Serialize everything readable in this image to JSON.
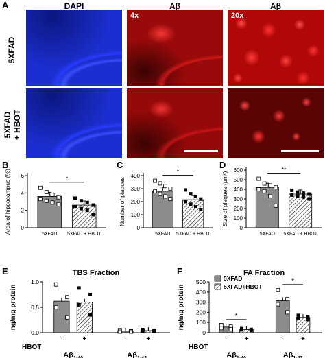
{
  "figure": {
    "panel_letters": [
      "A",
      "B",
      "C",
      "D",
      "E",
      "F"
    ],
    "col_headers": [
      "DAPI",
      "Aβ",
      "Aβ"
    ],
    "row_labels": [
      "5XFAD",
      "5XFAD\n+ HBOT"
    ],
    "magnifications": [
      "4x",
      "20x"
    ],
    "colors": {
      "dapi": "#1b2fe0",
      "abeta": "#e01010",
      "bar_ctrl": "#8c8c8c",
      "bar_hbot": "#ffffff"
    }
  },
  "chart_data": [
    {
      "id": "B",
      "type": "bar",
      "ylabel": "Area of hippocampus (%)",
      "categories": [
        "5XFAD",
        "5XFAD + HBOT"
      ],
      "yticks": [
        0,
        2,
        4,
        6
      ],
      "ylim": [
        0,
        6
      ],
      "values": [
        3.6,
        2.6
      ],
      "sig": "*",
      "points": [
        [
          4.6,
          4.1,
          3.8,
          3.5,
          3.3,
          3.1,
          2.9,
          2.7
        ],
        [
          3.4,
          3.1,
          2.9,
          2.6,
          2.4,
          2.2,
          2.0,
          1.5
        ]
      ]
    },
    {
      "id": "C",
      "type": "bar",
      "ylabel": "Number of plaques",
      "categories": [
        "5XFAD",
        "5XFAD + HBOT"
      ],
      "yticks": [
        0,
        100,
        200,
        300,
        400
      ],
      "ylim": [
        0,
        400
      ],
      "values": [
        280,
        215
      ],
      "sig": "*",
      "points": [
        [
          360,
          340,
          320,
          300,
          280,
          260,
          240,
          220
        ],
        [
          290,
          260,
          240,
          220,
          200,
          180,
          160,
          140
        ]
      ]
    },
    {
      "id": "D",
      "type": "bar",
      "ylabel": "Size of plaques (μm²)",
      "categories": [
        "5XFAD",
        "5XFAD + HBOT"
      ],
      "yticks": [
        0,
        100,
        200,
        300,
        400,
        500,
        600
      ],
      "ylim": [
        0,
        600
      ],
      "values": [
        420,
        350
      ],
      "sig": "**",
      "points": [
        [
          510,
          460,
          440,
          420,
          400,
          380,
          330,
          230
        ],
        [
          390,
          370,
          360,
          350,
          340,
          330,
          320,
          300
        ]
      ]
    },
    {
      "id": "E",
      "type": "bar",
      "title": "TBS Fraction",
      "ylabel": "ng/mg protein",
      "yticks": [
        "0.0",
        "0.5",
        "1.0"
      ],
      "ylim": [
        0,
        1
      ],
      "groups": [
        "Aβ1-40",
        "Aβ1-42"
      ],
      "row_label": "HBOT",
      "signs": [
        "-",
        "+",
        "-",
        "+"
      ],
      "values": [
        0.62,
        0.6,
        0.03,
        0.04
      ],
      "points": [
        [
          0.95,
          0.7,
          0.5,
          0.3
        ],
        [
          0.88,
          0.75,
          0.55,
          0.35
        ],
        [
          0.05,
          0.03,
          0.02,
          0.02
        ],
        [
          0.06,
          0.04,
          0.03,
          0.02
        ]
      ]
    },
    {
      "id": "F",
      "type": "bar",
      "title": "FA Fraction",
      "ylabel": "ng/mg protein",
      "yticks": [
        0,
        100,
        200,
        300,
        400,
        500
      ],
      "ylim": [
        0,
        500
      ],
      "groups": [
        "Aβ1-40",
        "Aβ1-42"
      ],
      "row_label": "HBOT",
      "signs": [
        "-",
        "+",
        "-",
        "+"
      ],
      "legend": [
        "5XFAD",
        "5XFAD+HBOT"
      ],
      "values": [
        55,
        30,
        315,
        150
      ],
      "sig": [
        "*",
        "*"
      ],
      "points": [
        [
          75,
          60,
          45,
          35
        ],
        [
          40,
          32,
          28,
          22
        ],
        [
          420,
          330,
          280,
          200
        ],
        [
          170,
          155,
          140,
          130
        ]
      ]
    }
  ]
}
